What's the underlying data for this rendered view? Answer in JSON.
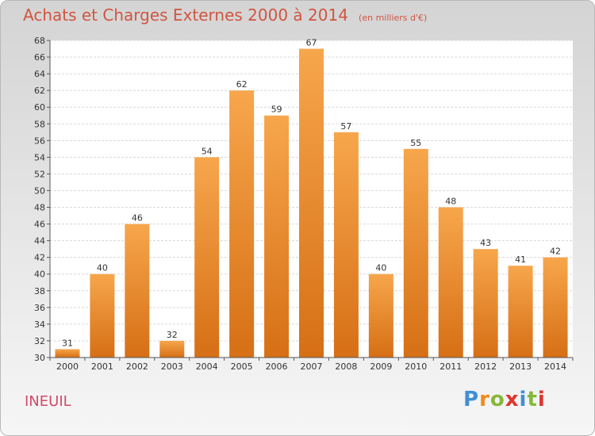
{
  "header": {
    "title": "Achats et Charges Externes 2000 à 2014",
    "unit": "(en milliers d'€)"
  },
  "footer": {
    "commune": "INEUIL",
    "logo": "Proxiti"
  },
  "colors": {
    "bar_top": "#f7a64c",
    "bar_bottom": "#d66f15",
    "title": "#d05540",
    "commune": "#d04a6a"
  },
  "chart_data": {
    "type": "bar",
    "title": "Achats et Charges Externes 2000 à 2014",
    "subtitle": "(en milliers d'€)",
    "categories": [
      "2000",
      "2001",
      "2002",
      "2003",
      "2004",
      "2005",
      "2006",
      "2007",
      "2008",
      "2009",
      "2010",
      "2011",
      "2012",
      "2013",
      "2014"
    ],
    "values": [
      31,
      40,
      46,
      32,
      54,
      62,
      59,
      67,
      57,
      40,
      55,
      48,
      43,
      41,
      42
    ],
    "ylim": [
      30,
      68
    ],
    "yticks": [
      30,
      32,
      34,
      36,
      38,
      40,
      42,
      44,
      46,
      48,
      50,
      52,
      54,
      56,
      58,
      60,
      62,
      64,
      66,
      68
    ],
    "grid": true,
    "data_labels": true
  }
}
